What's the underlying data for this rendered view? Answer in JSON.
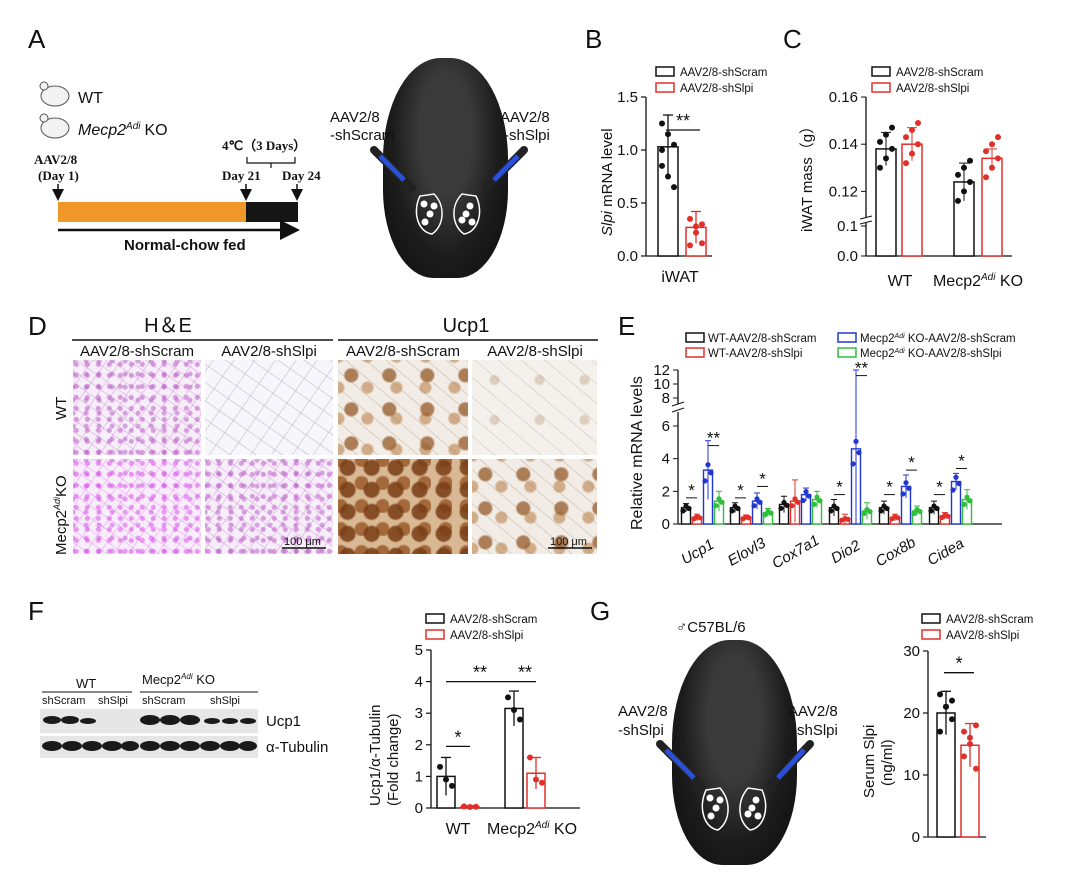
{
  "panels": {
    "A": {
      "label": "A",
      "legend": [
        "WT",
        "KO"
      ],
      "ko_gene": "Mecp2",
      "ko_sup": "Adi",
      "timeline": {
        "injection": "AAV2/8",
        "injection_day": "(Day 1)",
        "cold": "4℃（3 Days）",
        "day21": "Day 21",
        "day24": "Day 24",
        "diet": "Normal-chow fed"
      },
      "left_inj_1": "AAV2/8",
      "left_inj_2": "-shScram",
      "right_inj_1": "AAV2/8",
      "right_inj_2": "-shSlpi"
    },
    "B": {
      "label": "B"
    },
    "C": {
      "label": "C"
    },
    "D": {
      "label": "D",
      "he_title": "H＆E",
      "ucp1_title": "Ucp1",
      "cols": [
        "AAV2/8-shScram",
        "AAV2/8-shSlpi",
        "AAV2/8-shScram",
        "AAV2/8-shSlpi"
      ],
      "row_wt": "WT",
      "row_ko_gene": "Mecp2",
      "row_ko_sup": "Adi",
      "row_ko_suffix": "KO",
      "scale": "100 μm"
    },
    "E": {
      "label": "E"
    },
    "F": {
      "label": "F",
      "blot_wt": "WT",
      "blot_ko_gene": "Mecp2",
      "blot_ko_sup": "Adi",
      "blot_ko_suffix": " KO",
      "lanes_wt": [
        "shScram",
        "shSlpi"
      ],
      "lanes_ko": [
        "shScram",
        "shSlpi"
      ],
      "band_ucp1": "Ucp1",
      "band_tub": "α-Tubulin"
    },
    "G": {
      "label": "G",
      "strain": "♂C57BL/6",
      "left_inj_1": "AAV2/8",
      "left_inj_2": "-shSlpi",
      "right_inj_1": "AAV2/8",
      "right_inj_2": "-shSlpi"
    }
  },
  "colors": {
    "black": "#111111",
    "red": "#e0302a",
    "blue": "#2236d0",
    "green": "#2fbf3a",
    "orange": "#f0972a"
  },
  "chart_data": [
    {
      "id": "B",
      "type": "bar",
      "ylabel_ital": "Slpi",
      "ylabel_rest": " mRNA level",
      "xlabel": "iWAT",
      "legend": [
        "AAV2/8-shScram",
        "AAV2/8-shSlpi"
      ],
      "ylim": [
        0,
        1.5
      ],
      "yticks": [
        "0.0",
        "0.5",
        "1.0",
        "1.5"
      ],
      "ytickvals": [
        0,
        0.5,
        1.0,
        1.5
      ],
      "series": [
        {
          "name": "AAV2/8-shScram",
          "values": [
            1.03
          ],
          "sd": 0.3
        },
        {
          "name": "AAV2/8-shSlpi",
          "values": [
            0.27
          ],
          "sd": 0.15
        }
      ],
      "points": [
        [
          1.25,
          1.15,
          1.05,
          1.0,
          0.75,
          0.65,
          0.85
        ],
        [
          0.35,
          0.28,
          0.12,
          0.1,
          0.22,
          0.3
        ]
      ],
      "significance": "**"
    },
    {
      "id": "C",
      "type": "bar",
      "ylabel": "iWAT mass（g）",
      "categories": [
        "WT",
        "Mecp2"
      ],
      "ko_sup": "Adi",
      "ko_suffix": " KO",
      "legend": [
        "AAV2/8-shScram",
        "AAV2/8-shSlpi"
      ],
      "yticks": [
        "0.0",
        "0.1",
        "0.12",
        "0.14",
        "0.16"
      ],
      "ytickvals": [
        0.0,
        0.1,
        0.12,
        0.14,
        0.16
      ],
      "series": [
        {
          "name": "AAV2/8-shScram",
          "values": [
            0.138,
            0.124
          ]
        },
        {
          "name": "AAV2/8-shSlpi",
          "values": [
            0.14,
            0.134
          ]
        }
      ],
      "sd": [
        [
          0.007,
          0.008
        ],
        [
          0.007,
          0.004
        ]
      ]
    },
    {
      "id": "E",
      "type": "bar",
      "ylabel": "Relative mRNA  levels",
      "categories": [
        "Ucp1",
        "Elovl3",
        "Cox7a1",
        "Dio2",
        "Cox8b",
        "Cidea"
      ],
      "legend": [
        "WT-AAV2/8-shScram",
        "WT-AAV2/8-shSlpi",
        "KO-AAV2/8-shScram",
        "KO-AAV2/8-shSlpi"
      ],
      "legend_ko_gene": "Mecp2",
      "legend_ko_sup": "Adi",
      "yticks": [
        "0",
        "2",
        "4",
        "6",
        "8",
        "10",
        "12"
      ],
      "ytickvals": [
        0,
        2,
        4,
        6,
        8,
        10,
        12
      ],
      "series": [
        {
          "name": "WT-AAV2/8-shScram",
          "values": [
            1.0,
            1.0,
            1.2,
            1.0,
            1.0,
            1.0
          ]
        },
        {
          "name": "WT-AAV2/8-shSlpi",
          "values": [
            0.4,
            0.4,
            1.4,
            0.3,
            0.4,
            0.5
          ]
        },
        {
          "name": "Mecp2Adi KO-AAV2/8-shScram",
          "values": [
            3.3,
            1.4,
            1.8,
            4.6,
            2.3,
            2.6
          ]
        },
        {
          "name": "Mecp2Adi KO-AAV2/8-shSlpi",
          "values": [
            1.4,
            0.7,
            1.5,
            0.8,
            0.8,
            1.5
          ]
        }
      ],
      "sd": [
        [
          0.25,
          0.3,
          0.5,
          0.5,
          0.4,
          0.4
        ],
        [
          0.2,
          0.15,
          1.3,
          0.3,
          0.2,
          0.2
        ],
        [
          1.8,
          0.5,
          0.4,
          7.4,
          0.7,
          0.5
        ],
        [
          0.6,
          0.25,
          0.5,
          0.5,
          0.3,
          0.6
        ]
      ],
      "significance": [
        "*",
        "**",
        "*",
        "*",
        "*",
        "**",
        "*",
        "*",
        "*",
        "*"
      ]
    },
    {
      "id": "F",
      "type": "bar",
      "ylabel_1": "Ucp1/α-Tubulin",
      "ylabel_2": "(Fold change)",
      "categories": [
        "WT",
        "Mecp2"
      ],
      "ko_sup": "Adi",
      "ko_suffix": " KO",
      "legend": [
        "AAV2/8-shScram",
        "AAV2/8-shSlpi"
      ],
      "ylim": [
        0,
        5
      ],
      "yticks": [
        "0",
        "1",
        "2",
        "3",
        "4",
        "5"
      ],
      "ytickvals": [
        0,
        1,
        2,
        3,
        4,
        5
      ],
      "series": [
        {
          "name": "AAV2/8-shScram",
          "values": [
            1.0,
            3.15
          ]
        },
        {
          "name": "AAV2/8-shSlpi",
          "values": [
            0.04,
            1.1
          ]
        }
      ],
      "sd": [
        [
          0.6,
          0.55
        ],
        [
          0.03,
          0.5
        ]
      ],
      "significance": [
        "*",
        "**",
        "**"
      ]
    },
    {
      "id": "G",
      "type": "bar",
      "ylabel_1": "Serum Slpi",
      "ylabel_2": "(ng/ml)",
      "legend": [
        "AAV2/8-shScram",
        "AAV2/8-shSlpi"
      ],
      "ylim": [
        0,
        30
      ],
      "yticks": [
        "0",
        "10",
        "20",
        "30"
      ],
      "ytickvals": [
        0,
        10,
        20,
        30
      ],
      "series": [
        {
          "name": "AAV2/8-shScram",
          "values": [
            20.0
          ],
          "sd": 3.5
        },
        {
          "name": "AAV2/8-shSlpi",
          "values": [
            14.8
          ],
          "sd": 3.5
        }
      ],
      "points": [
        [
          23,
          21,
          19,
          17,
          21,
          22
        ],
        [
          17,
          15,
          11,
          13,
          16,
          18
        ]
      ],
      "significance": "*"
    }
  ]
}
